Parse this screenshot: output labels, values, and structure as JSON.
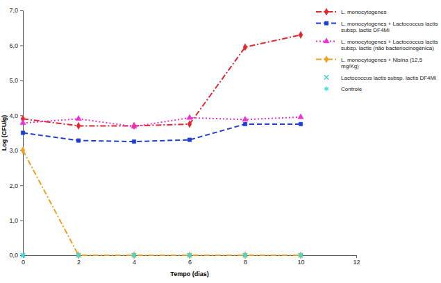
{
  "chart_data": {
    "type": "line",
    "x_label": "Tempo (dias)",
    "y_label": "Log (CFU/g)",
    "x": [
      0,
      2,
      4,
      6,
      8,
      10
    ],
    "xlim": [
      0,
      12
    ],
    "xticks": [
      0,
      2,
      4,
      6,
      8,
      10,
      12
    ],
    "ylim": [
      0,
      7
    ],
    "yticks": [
      {
        "value": 0,
        "label": "0,0"
      },
      {
        "value": 1,
        "label": "1,0"
      },
      {
        "value": 2,
        "label": "2,0"
      },
      {
        "value": 3,
        "label": "3,0"
      },
      {
        "value": 4,
        "label": "4,0"
      },
      {
        "value": 5,
        "label": "5,0"
      },
      {
        "value": 6,
        "label": "6,0"
      },
      {
        "value": 7,
        "label": "7,0"
      }
    ],
    "grid": false,
    "legend": "top-right",
    "series": [
      {
        "name": "L. monocytogenes",
        "color": "#e3262b",
        "marker": "diamond",
        "line_style": "dashdot",
        "values": [
          3.9,
          3.7,
          3.7,
          3.75,
          5.95,
          6.3
        ]
      },
      {
        "name": "L. monocytogenes + Lactococcus lactis subsp. lactis  DF4Mi",
        "color": "#1f3fd0",
        "marker": "square",
        "line_style": "dashed",
        "values": [
          3.5,
          3.28,
          3.25,
          3.3,
          3.75,
          3.75
        ]
      },
      {
        "name": "L. monocytogenes + Lactococcus lactis subsp. lactis (não bacteriocinogênica)",
        "color": "#ee2fd6",
        "marker": "triangle",
        "line_style": "dotted",
        "values": [
          3.78,
          3.9,
          3.68,
          3.93,
          3.88,
          3.95
        ]
      },
      {
        "name": "L. monocytogenes + Nisina (12,5 mg/Kg)",
        "color": "#f0a020",
        "marker": "diamond",
        "line_style": "dashdot",
        "values": [
          3.0,
          0,
          0,
          0,
          0,
          0
        ]
      },
      {
        "name": "Lactococcus lactis subsp. lactis  DF4Mi",
        "color": "#3fc8d8",
        "marker": "x",
        "line_style": "none",
        "values": [
          0,
          0,
          0,
          0,
          0,
          0
        ]
      },
      {
        "name": "Controle",
        "color": "#33dde6",
        "marker": "star",
        "line_style": "none",
        "values": [
          0,
          0,
          0,
          0,
          0,
          0
        ]
      }
    ]
  }
}
